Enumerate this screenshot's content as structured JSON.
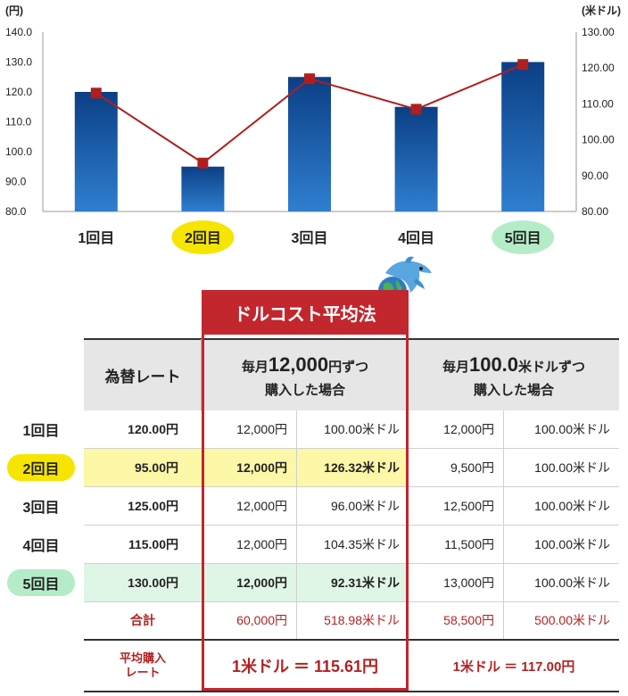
{
  "chart_data": {
    "type": "bar",
    "categories": [
      "1回目",
      "2回目",
      "3回目",
      "4回目",
      "5回目"
    ],
    "highlight": {
      "2回目": "#f5e500",
      "5回目": "#b4ecc8"
    },
    "left_axis": {
      "unit": "(円)",
      "ticks": [
        "140.0",
        "130.0",
        "120.0",
        "110.0",
        "100.0",
        "90.0",
        "80.0"
      ],
      "ylim": [
        80,
        140
      ]
    },
    "right_axis": {
      "unit": "(米ドル)",
      "ticks": [
        "130.00",
        "120.00",
        "110.00",
        "100.00",
        "90.00",
        "80.00"
      ],
      "ylim": [
        80,
        130
      ]
    },
    "series": [
      {
        "type": "bar",
        "axis": "left",
        "values": [
          120,
          95,
          125,
          115,
          130
        ],
        "color": "#1e5fa8"
      },
      {
        "type": "line",
        "axis": "right",
        "values": [
          113,
          93.5,
          117,
          108.5,
          121
        ],
        "color": "#b01e1e"
      }
    ]
  },
  "table": {
    "banner": "ドルコスト平均法",
    "header": {
      "rate": "為替レート",
      "col1_line1_pre": "毎月",
      "col1_line1_big": "12,000",
      "col1_line1_post": "円ずつ",
      "col1_line2": "購入した場合",
      "col2_line1_pre": "毎月",
      "col2_line1_big": "100.0",
      "col2_line1_post": "米ドルずつ",
      "col2_line2": "購入した場合"
    },
    "rows": [
      {
        "label": "1回目",
        "rate": "120.00円",
        "a_yen": "12,000円",
        "a_usd": "100.00米ドル",
        "b_yen": "12,000円",
        "b_usd": "100.00米ドル"
      },
      {
        "label": "2回目",
        "rate": "95.00円",
        "a_yen": "12,000円",
        "a_usd": "126.32米ドル",
        "b_yen": "9,500円",
        "b_usd": "100.00米ドル"
      },
      {
        "label": "3回目",
        "rate": "125.00円",
        "a_yen": "12,000円",
        "a_usd": "96.00米ドル",
        "b_yen": "12,500円",
        "b_usd": "100.00米ドル"
      },
      {
        "label": "4回目",
        "rate": "115.00円",
        "a_yen": "12,000円",
        "a_usd": "104.35米ドル",
        "b_yen": "11,500円",
        "b_usd": "100.00米ドル"
      },
      {
        "label": "5回目",
        "rate": "130.00円",
        "a_yen": "12,000円",
        "a_usd": "92.31米ドル",
        "b_yen": "13,000円",
        "b_usd": "100.00米ドル"
      }
    ],
    "total": {
      "label": "合計",
      "a_yen": "60,000円",
      "a_usd": "518.98米ドル",
      "b_yen": "58,500円",
      "b_usd": "500.00米ドル"
    },
    "average": {
      "label_line1": "平均購入",
      "label_line2": "レート",
      "a": "1米ドル ＝ 115.61円",
      "b": "1米ドル ＝ 117.00円"
    }
  },
  "colors": {
    "bar": "#1e5fa8",
    "line": "#b01e1e",
    "accent": "#c1272d",
    "highlight_yellow": "#fdf7a8",
    "highlight_green": "#dff6e6",
    "header_bg": "#e6e6e6"
  }
}
